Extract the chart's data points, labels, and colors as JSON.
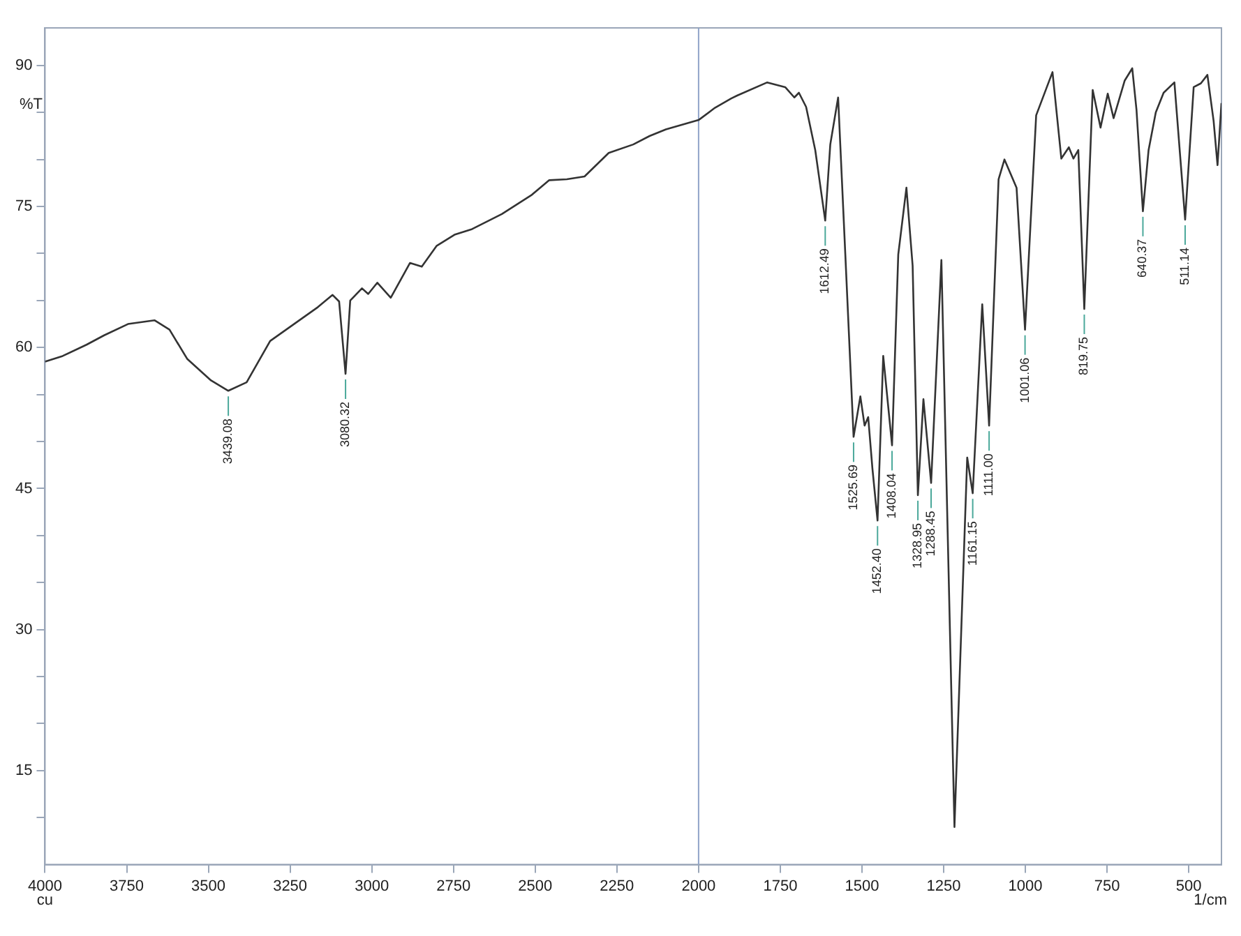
{
  "chart_data": {
    "type": "line",
    "xlabel": "1/cm",
    "ylabel": "%T",
    "color": "#333333",
    "marker": "none",
    "line_style": "solid",
    "grid": false,
    "legend": false,
    "x": [
      4000,
      3946,
      3873,
      3819,
      3746,
      3665,
      3619,
      3565,
      3492,
      3439.08,
      3383,
      3311,
      3238,
      3165,
      3120,
      3100,
      3080.32,
      3066,
      3030,
      3011,
      2983,
      2942,
      2883,
      2847,
      2802,
      2747,
      2693,
      2602,
      2512,
      2457,
      2403,
      2349,
      2275,
      2200,
      2150,
      2100,
      2050,
      2000,
      1950,
      1900,
      1882,
      1790,
      1735,
      1707,
      1693,
      1671,
      1643,
      1612.49,
      1597,
      1573,
      1551,
      1525.69,
      1505,
      1492,
      1481,
      1468,
      1452.4,
      1435,
      1408.04,
      1389,
      1364,
      1345,
      1328.95,
      1312,
      1288.45,
      1257,
      1217,
      1178,
      1161.15,
      1132,
      1111,
      1082,
      1064,
      1027,
      1001.06,
      967,
      917,
      890,
      867,
      853,
      838,
      819.75,
      794,
      770,
      748,
      730,
      696,
      673,
      660,
      640.37,
      623,
      601,
      577,
      544,
      511.14,
      485,
      463,
      443,
      424,
      412,
      400
    ],
    "values": [
      58.5,
      59.1,
      60.3,
      61.3,
      62.5,
      62.9,
      61.9,
      58.8,
      56.5,
      55.4,
      56.3,
      60.7,
      62.5,
      64.3,
      65.6,
      64.9,
      57.2,
      65,
      66.3,
      65.7,
      66.9,
      65.3,
      69,
      68.6,
      70.8,
      72,
      72.6,
      74.2,
      76.2,
      77.8,
      77.9,
      78.2,
      80.7,
      81.6,
      82.5,
      83.2,
      83.7,
      84.2,
      85.5,
      86.5,
      86.8,
      88.2,
      87.7,
      86.6,
      87.1,
      85.6,
      81,
      73.5,
      81.6,
      86.6,
      69.9,
      50.5,
      54.8,
      51.7,
      52.6,
      47.1,
      41.6,
      59.1,
      49.6,
      69.9,
      77,
      68.7,
      44.3,
      54.5,
      45.6,
      69.3,
      9,
      48.3,
      44.5,
      64.6,
      51.7,
      77.9,
      80,
      77,
      61.9,
      84.7,
      89.3,
      80.1,
      81.3,
      80.1,
      81,
      64.1,
      87.4,
      83.4,
      87,
      84.4,
      88.4,
      89.7,
      85.3,
      74.5,
      81,
      85,
      87.1,
      88.2,
      73.6,
      87.7,
      88.1,
      89,
      84.1,
      79.4,
      86
    ],
    "xlim": [
      4000,
      400
    ],
    "xticks": [
      4000,
      3750,
      3500,
      3250,
      3000,
      2750,
      2500,
      2250,
      2000,
      1750,
      1500,
      1250,
      1000,
      750,
      500
    ],
    "ylim": [
      5,
      94
    ],
    "yticks": [
      {
        "value": 10,
        "label": null
      },
      15,
      {
        "value": 20,
        "label": null
      },
      {
        "value": 25,
        "label": null
      },
      30,
      {
        "value": 35,
        "label": null
      },
      {
        "value": 40,
        "label": null
      },
      45,
      {
        "value": 50,
        "label": null
      },
      {
        "value": 55,
        "label": null
      },
      60,
      {
        "value": 65,
        "label": null
      },
      {
        "value": 70,
        "label": null
      },
      75,
      {
        "value": 80,
        "label": null
      },
      {
        "value": 85,
        "label": null
      },
      90
    ],
    "ref_lines": [
      {
        "axis": "x",
        "value": 2000,
        "color": "#8fa3c8"
      }
    ],
    "annotations": [
      "cu",
      {
        "text": "3439.08",
        "x": 3439.08,
        "y": 55.4
      },
      {
        "text": "3080.32",
        "x": 3080.32,
        "y": 57.2
      },
      {
        "text": "1612.49",
        "x": 1612.49,
        "y": 73.5
      },
      {
        "text": "1525.69",
        "x": 1525.69,
        "y": 50.5
      },
      {
        "text": "1452.40",
        "x": 1452.4,
        "y": 41.6
      },
      {
        "text": "1408.04",
        "x": 1408.04,
        "y": 49.6
      },
      {
        "text": "1328.95",
        "x": 1328.95,
        "y": 44.3
      },
      {
        "text": "1288.45",
        "x": 1288.45,
        "y": 45.6
      },
      {
        "text": "1161.15",
        "x": 1161.15,
        "y": 44.5
      },
      {
        "text": "1111.00",
        "x": 1111,
        "y": 51.7
      },
      {
        "text": "1001.06",
        "x": 1001.06,
        "y": 61.9
      },
      {
        "text": "819.75",
        "x": 819.75,
        "y": 64.1
      },
      {
        "text": "640.37",
        "x": 640.37,
        "y": 74.5
      },
      {
        "text": "511.14",
        "x": 511.14,
        "y": 73.6
      }
    ]
  }
}
